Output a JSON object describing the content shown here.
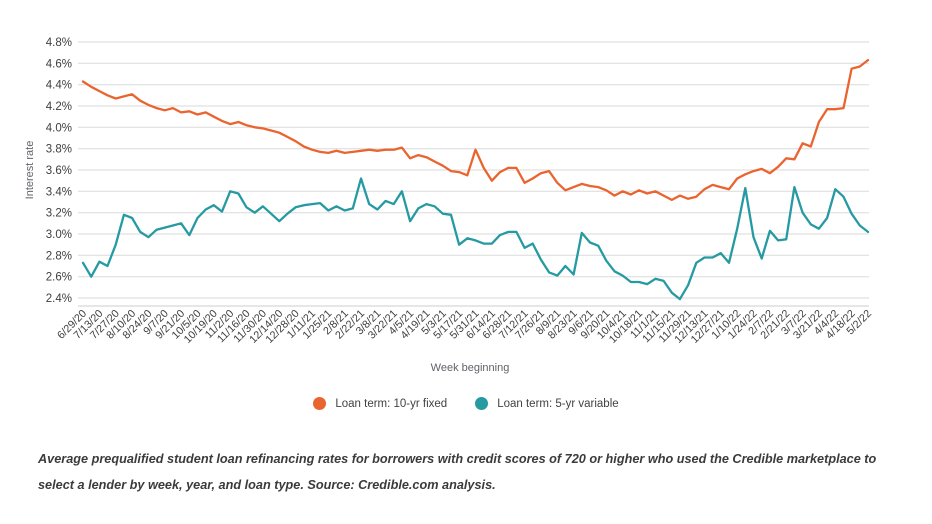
{
  "chart_data": {
    "type": "line",
    "title": "",
    "xlabel": "Week beginning",
    "ylabel": "Interest rate",
    "ylim": [
      2.4,
      4.8
    ],
    "ytick_step": 0.2,
    "ytick_suffix": "%",
    "grid": true,
    "legend_position": "bottom",
    "label_every": 2,
    "x_labels": [
      "6/29/20",
      "7/13/20",
      "7/27/20",
      "8/10/20",
      "8/24/20",
      "9/7/20",
      "9/21/20",
      "10/5/20",
      "10/19/20",
      "11/2/20",
      "11/16/20",
      "11/30/20",
      "12/14/20",
      "12/28/20",
      "1/11/21",
      "1/25/21",
      "2/8/21",
      "2/22/21",
      "3/8/21",
      "3/22/21",
      "4/5/21",
      "4/19/21",
      "5/3/21",
      "5/17/21",
      "5/31/21",
      "6/14/21",
      "6/28/21",
      "7/12/21",
      "7/26/21",
      "8/9/21",
      "8/23/21",
      "9/6/21",
      "9/20/21",
      "10/4/21",
      "10/18/21",
      "11/1/21",
      "11/15/21",
      "11/29/21",
      "12/13/21",
      "12/27/21",
      "1/10/22",
      "1/24/22",
      "2/7/22",
      "2/21/22",
      "3/7/22",
      "3/21/22",
      "4/4/22",
      "4/18/22",
      "5/2/22"
    ],
    "series": [
      {
        "name": "Loan term: 10-yr fixed",
        "color": "#ea6430",
        "values": [
          4.43,
          4.38,
          4.34,
          4.3,
          4.27,
          4.29,
          4.31,
          4.25,
          4.21,
          4.18,
          4.16,
          4.18,
          4.14,
          4.15,
          4.12,
          4.14,
          4.1,
          4.06,
          4.03,
          4.05,
          4.02,
          4.0,
          3.99,
          3.97,
          3.95,
          3.91,
          3.87,
          3.82,
          3.79,
          3.77,
          3.76,
          3.78,
          3.76,
          3.77,
          3.78,
          3.79,
          3.78,
          3.79,
          3.79,
          3.81,
          3.71,
          3.74,
          3.72,
          3.68,
          3.64,
          3.59,
          3.58,
          3.55,
          3.79,
          3.62,
          3.5,
          3.58,
          3.62,
          3.62,
          3.48,
          3.52,
          3.57,
          3.59,
          3.48,
          3.41,
          3.44,
          3.47,
          3.45,
          3.44,
          3.41,
          3.36,
          3.4,
          3.37,
          3.41,
          3.38,
          3.4,
          3.36,
          3.32,
          3.36,
          3.33,
          3.35,
          3.42,
          3.46,
          3.44,
          3.42,
          3.52,
          3.56,
          3.59,
          3.61,
          3.57,
          3.63,
          3.71,
          3.7,
          3.85,
          3.82,
          4.05,
          4.17,
          4.17,
          4.18,
          4.55,
          4.57,
          4.63
        ]
      },
      {
        "name": "Loan term: 5-yr variable",
        "color": "#269aa2",
        "values": [
          2.73,
          2.6,
          2.74,
          2.7,
          2.9,
          3.18,
          3.15,
          3.02,
          2.97,
          3.04,
          3.06,
          3.08,
          3.1,
          2.99,
          3.15,
          3.23,
          3.27,
          3.21,
          3.4,
          3.38,
          3.25,
          3.2,
          3.26,
          3.19,
          3.12,
          3.19,
          3.25,
          3.27,
          3.28,
          3.29,
          3.22,
          3.26,
          3.22,
          3.24,
          3.52,
          3.28,
          3.23,
          3.31,
          3.28,
          3.4,
          3.12,
          3.24,
          3.28,
          3.26,
          3.19,
          3.18,
          2.9,
          2.96,
          2.94,
          2.91,
          2.91,
          2.99,
          3.02,
          3.02,
          2.87,
          2.91,
          2.76,
          2.64,
          2.61,
          2.7,
          2.62,
          3.01,
          2.92,
          2.89,
          2.75,
          2.65,
          2.61,
          2.55,
          2.55,
          2.53,
          2.58,
          2.56,
          2.45,
          2.39,
          2.52,
          2.73,
          2.78,
          2.78,
          2.82,
          2.73,
          3.05,
          3.43,
          2.97,
          2.77,
          3.03,
          2.94,
          2.95,
          3.44,
          3.2,
          3.09,
          3.05,
          3.15,
          3.42,
          3.35,
          3.19,
          3.08,
          3.02
        ]
      }
    ]
  },
  "legend": {
    "items": [
      {
        "label": "Loan term: 10-yr fixed",
        "color": "#ea6430"
      },
      {
        "label": "Loan term: 5-yr variable",
        "color": "#269aa2"
      }
    ]
  },
  "caption": "Average prequalified student loan refinancing rates for borrowers with credit scores of 720 or higher who used the Credible marketplace to select a lender by week, year, and loan type. Source: Credible.com analysis."
}
